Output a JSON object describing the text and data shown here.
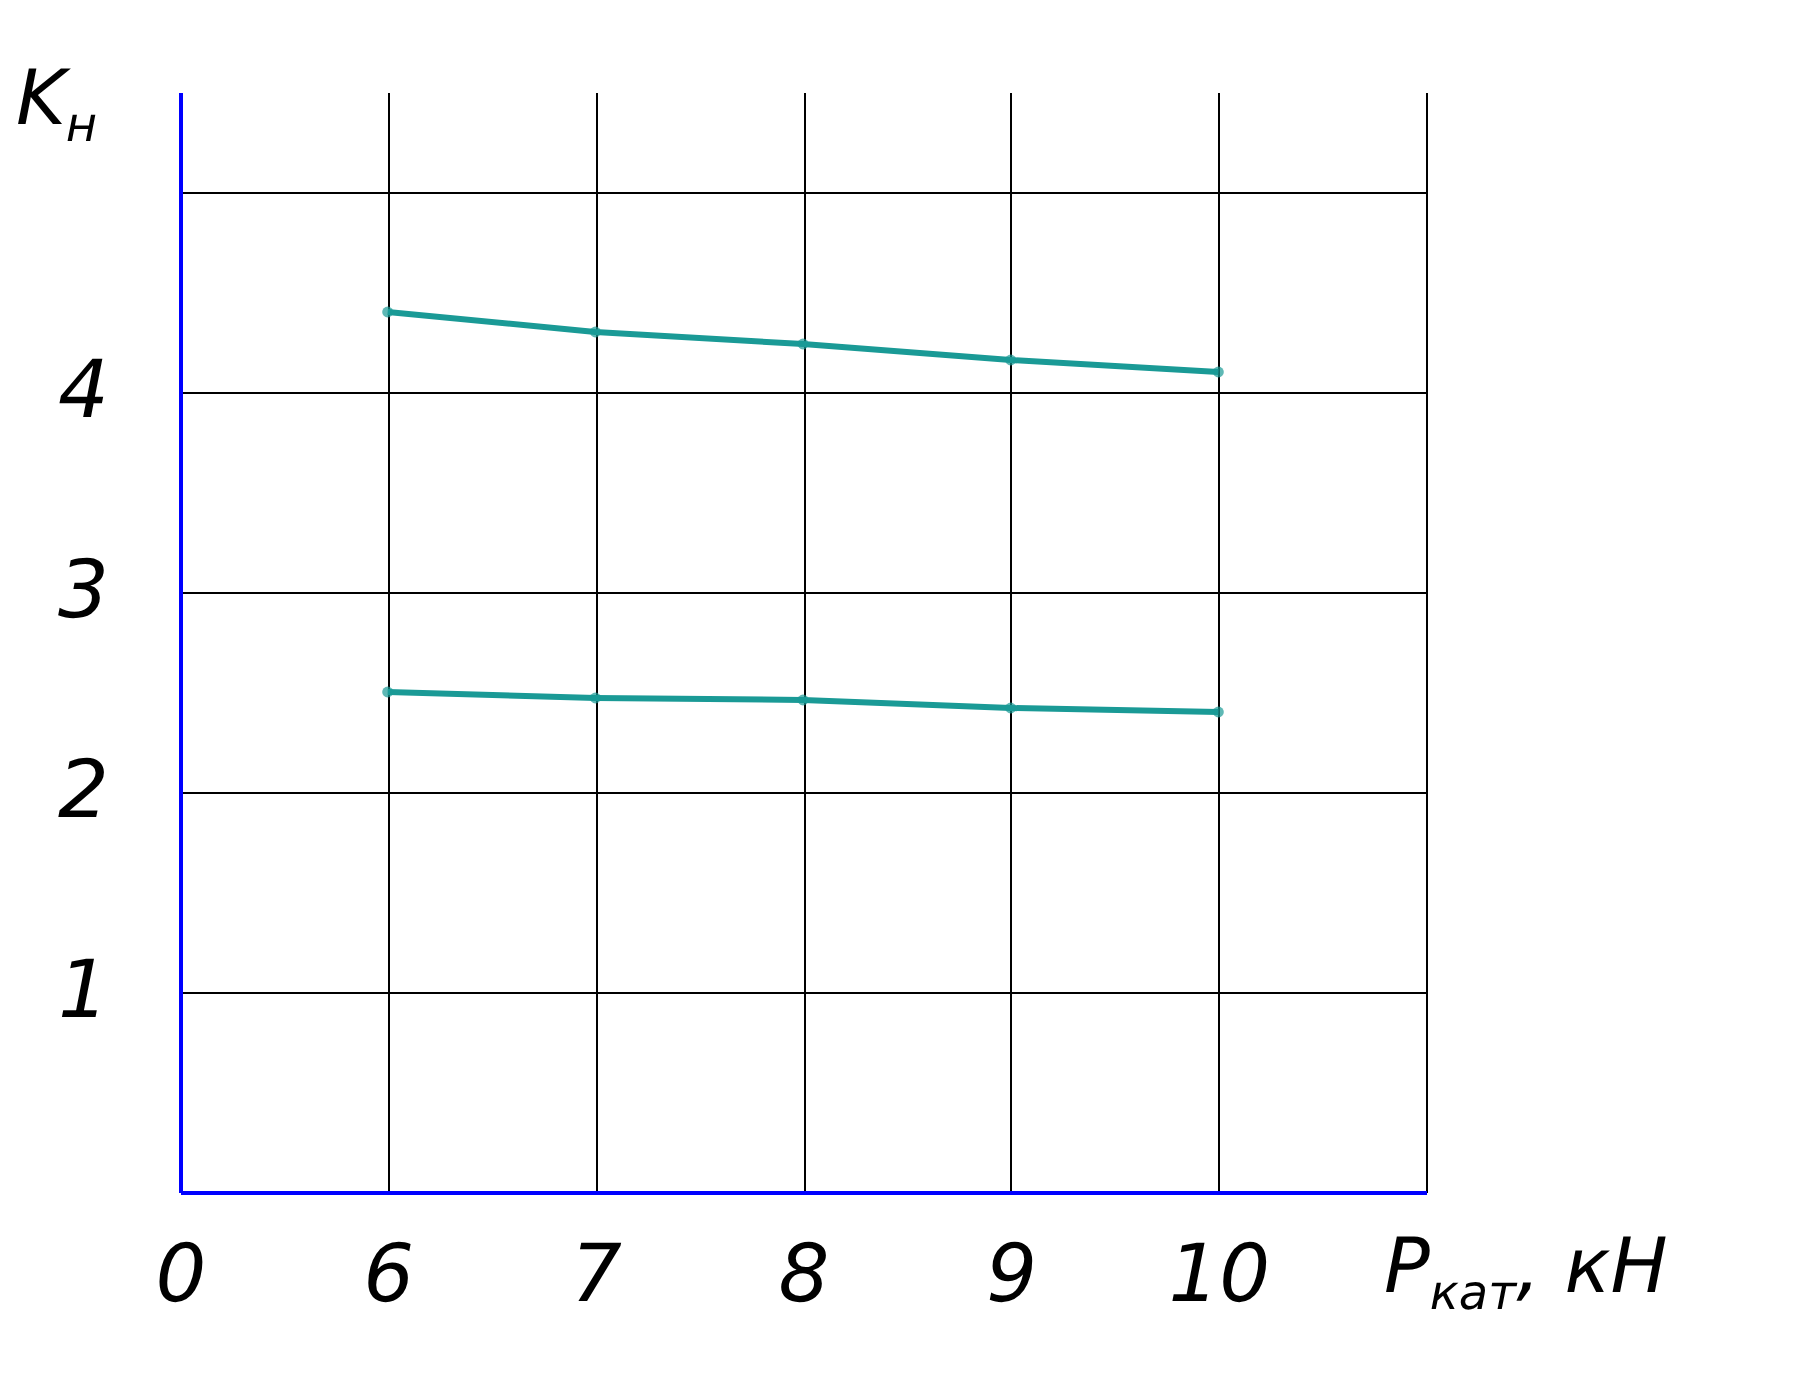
{
  "chart_data": {
    "type": "line",
    "xlabel": "P$_{кат}$, кН",
    "ylabel": "K$_{н}$",
    "categories": [
      "0",
      "6",
      "7",
      "8",
      "9",
      "10",
      null
    ],
    "series": [
      {
        "color": "#1a9a96",
        "values": [
          null,
          4.4,
          4.3,
          4.24,
          4.16,
          4.1,
          null
        ]
      },
      {
        "color": "#1a9a96",
        "values": [
          null,
          2.5,
          2.47,
          2.46,
          2.42,
          2.4,
          null
        ]
      }
    ],
    "ylim": [
      0,
      5.5
    ],
    "yticks": [
      {
        "value": 0,
        "label": null
      },
      1,
      2,
      3,
      4,
      {
        "value": 5,
        "label": null
      }
    ],
    "grid": true,
    "marker": "circle",
    "legend": false
  }
}
